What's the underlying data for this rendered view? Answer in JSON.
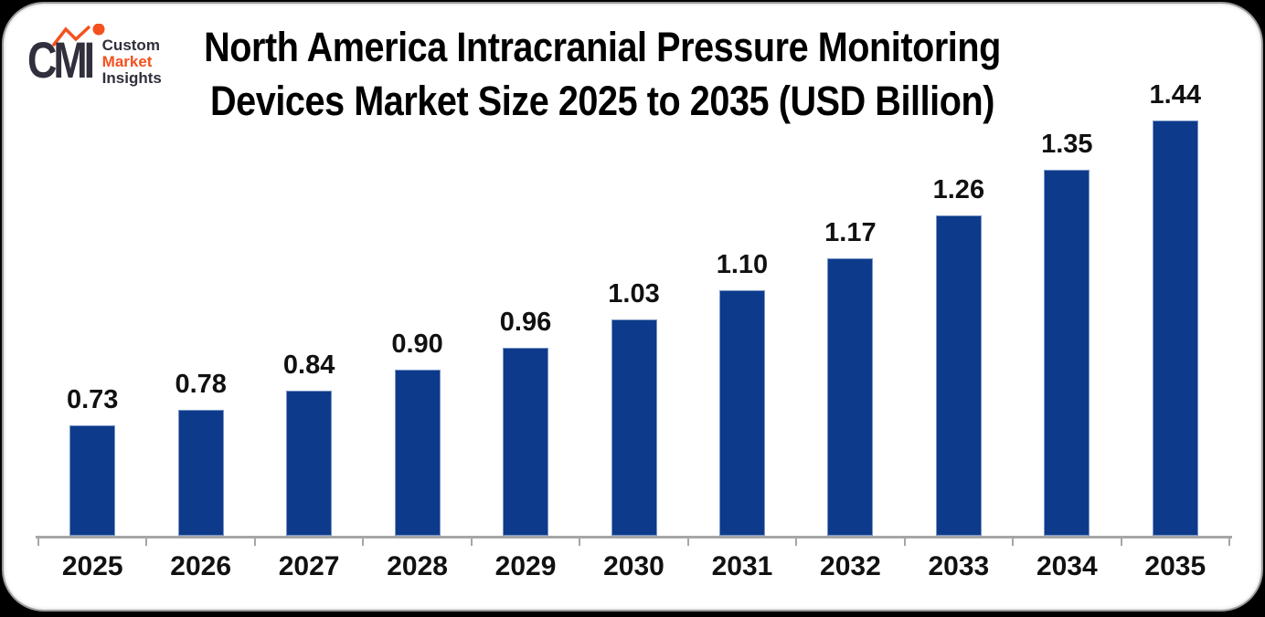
{
  "logo": {
    "monogram": "CMI",
    "line1": "Custom",
    "line2": "Market",
    "line3": "Insights",
    "accent_color": "#f4511e",
    "dark_color": "#312f3c"
  },
  "chart_data": {
    "type": "bar",
    "title": "North America Intracranial Pressure Monitoring Devices Market Size 2025 to 2035 (USD Billion)",
    "title_lines": [
      "North America Intracranial Pressure Monitoring",
      "Devices Market Size 2025 to 2035 (USD Billion)"
    ],
    "unit": "USD Billion",
    "categories": [
      "2025",
      "2026",
      "2027",
      "2028",
      "2029",
      "2030",
      "2031",
      "2032",
      "2033",
      "2034",
      "2035"
    ],
    "values": [
      0.73,
      0.78,
      0.84,
      0.9,
      0.96,
      1.03,
      1.1,
      1.17,
      1.26,
      1.35,
      1.44
    ],
    "value_labels": [
      "0.73",
      "0.78",
      "0.84",
      "0.90",
      "0.96",
      "1.03",
      "1.10",
      "1.17",
      "1.26",
      "1.35",
      "1.44"
    ],
    "xlabel": "",
    "ylabel": "",
    "legend": null,
    "grid": false,
    "y_axis_visible": false,
    "value_labels_visible": true,
    "bar_color": "#0d3a8a",
    "axis_color": "#a6a6a6",
    "label_color": "#111111",
    "title_color": "#000000"
  }
}
